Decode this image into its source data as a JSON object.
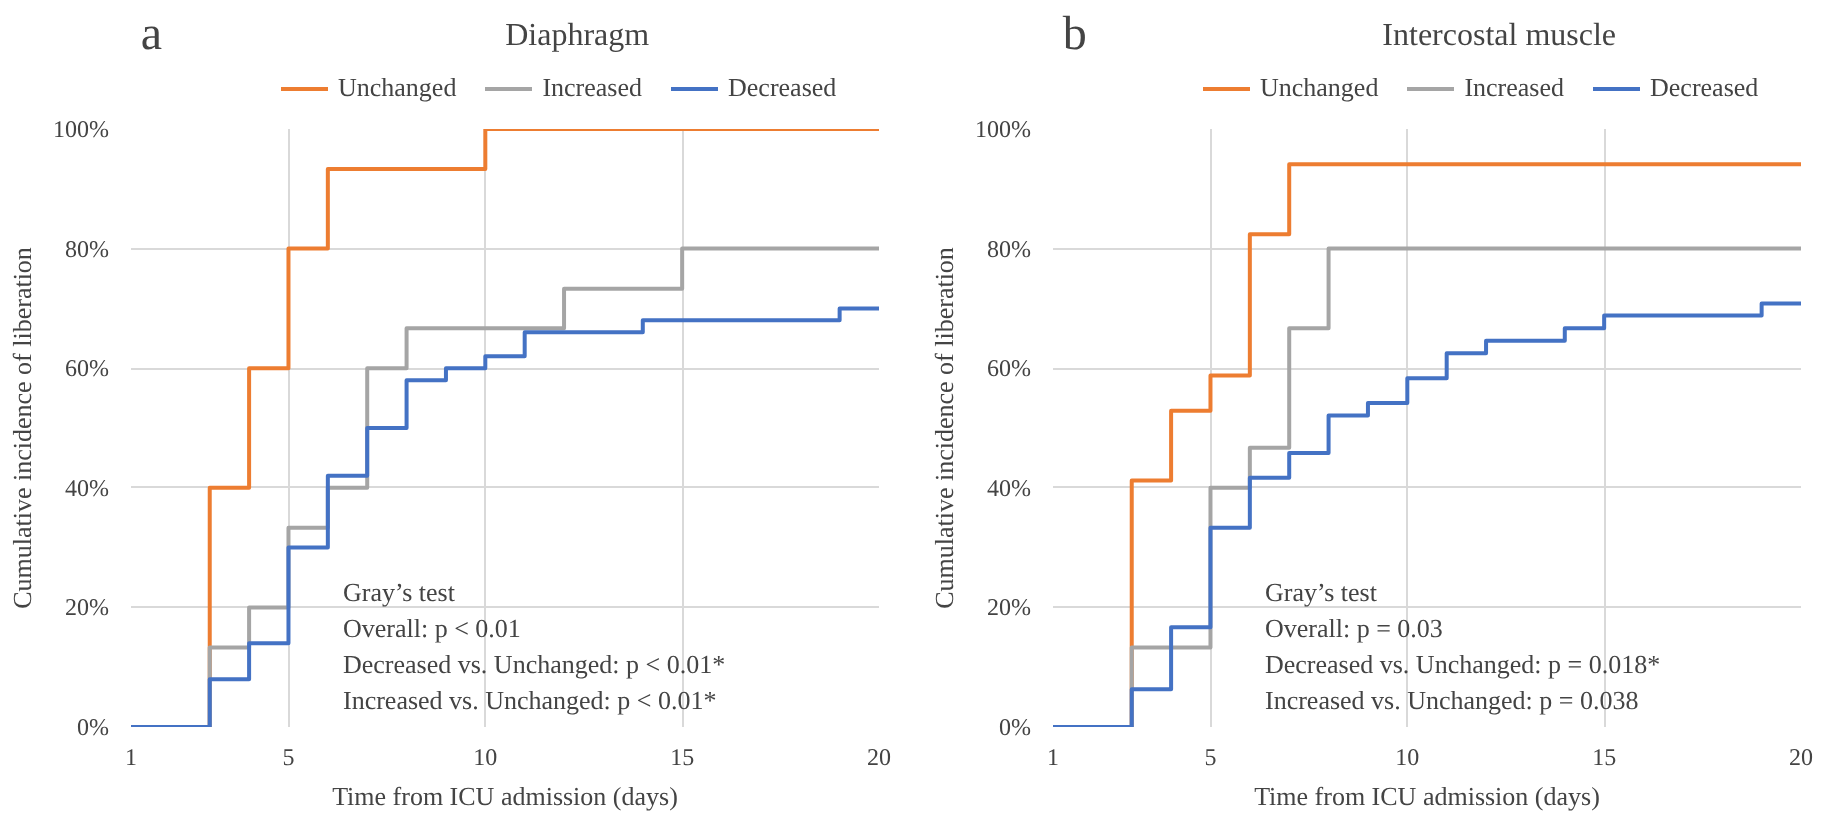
{
  "chart_data": [
    {
      "type": "step",
      "title": "Diaphragm",
      "xlabel": "Time from ICU admission (days)",
      "ylabel": "Cumulative incidence of liberation",
      "xlim": [
        1,
        20
      ],
      "ylim": [
        0,
        100
      ],
      "xticks": [
        1,
        5,
        10,
        15,
        20
      ],
      "yticks": [
        {
          "value": 0,
          "label": "0%"
        },
        {
          "value": 20,
          "label": "20%"
        },
        {
          "value": 40,
          "label": "40%"
        },
        {
          "value": 60,
          "label": "60%"
        },
        {
          "value": 80,
          "label": "80%"
        },
        {
          "value": 100,
          "label": "100%"
        }
      ],
      "grid": true,
      "legend": "top",
      "annotations": [
        "a",
        "Gray’s test",
        "Overall: p < 0.01",
        "Decreased vs. Unchanged: p < 0.01*",
        "Increased vs. Unchanged: p < 0.01*"
      ],
      "series": [
        {
          "name": "Unchanged",
          "color": "#ed7d31",
          "x": [
            1,
            3,
            4,
            5,
            6,
            10,
            20
          ],
          "values": [
            0,
            40,
            60,
            80,
            93.3,
            100,
            100
          ]
        },
        {
          "name": "Increased",
          "color": "#a5a5a5",
          "x": [
            1,
            3,
            4,
            5,
            6,
            7,
            8,
            12,
            15,
            20
          ],
          "values": [
            0,
            13.3,
            20,
            33.3,
            40,
            60,
            66.7,
            73.3,
            80,
            80
          ]
        },
        {
          "name": "Decreased",
          "color": "#4472c4",
          "x": [
            1,
            3,
            4,
            5,
            6,
            7,
            8,
            9,
            10,
            11,
            14,
            19,
            20
          ],
          "values": [
            0,
            8,
            14,
            30,
            42,
            50,
            58,
            60,
            62,
            66,
            68,
            70,
            70
          ]
        }
      ]
    },
    {
      "type": "step",
      "title": "Intercostal muscle",
      "xlabel": "Time from ICU admission (days)",
      "ylabel": "Cumulative incidence of liberation",
      "xlim": [
        1,
        20
      ],
      "ylim": [
        0,
        100
      ],
      "xticks": [
        1,
        5,
        10,
        15,
        20
      ],
      "yticks": [
        {
          "value": 0,
          "label": "0%"
        },
        {
          "value": 20,
          "label": "20%"
        },
        {
          "value": 40,
          "label": "40%"
        },
        {
          "value": 60,
          "label": "60%"
        },
        {
          "value": 80,
          "label": "80%"
        },
        {
          "value": 100,
          "label": "100%"
        }
      ],
      "grid": true,
      "legend": "top",
      "annotations": [
        "b",
        "Gray’s test",
        "Overall: p = 0.03",
        "Decreased vs. Unchanged: p = 0.018*",
        "Increased vs. Unchanged: p = 0.038"
      ],
      "series": [
        {
          "name": "Unchanged",
          "color": "#ed7d31",
          "x": [
            1,
            3,
            4,
            5,
            6,
            7,
            20
          ],
          "values": [
            0,
            41.2,
            52.9,
            58.8,
            82.4,
            94.1,
            94.1
          ]
        },
        {
          "name": "Increased",
          "color": "#a5a5a5",
          "x": [
            1,
            3,
            5,
            6,
            7,
            8,
            20
          ],
          "values": [
            0,
            13.3,
            40,
            46.7,
            66.7,
            80,
            80
          ]
        },
        {
          "name": "Decreased",
          "color": "#4472c4",
          "x": [
            1,
            3,
            4,
            5,
            6,
            7,
            8,
            9,
            10,
            11,
            12,
            14,
            15,
            19,
            20
          ],
          "values": [
            0,
            6.3,
            16.7,
            33.3,
            41.7,
            45.8,
            52.1,
            54.2,
            58.3,
            62.5,
            64.6,
            66.7,
            68.8,
            70.8,
            70.8
          ]
        }
      ]
    }
  ]
}
